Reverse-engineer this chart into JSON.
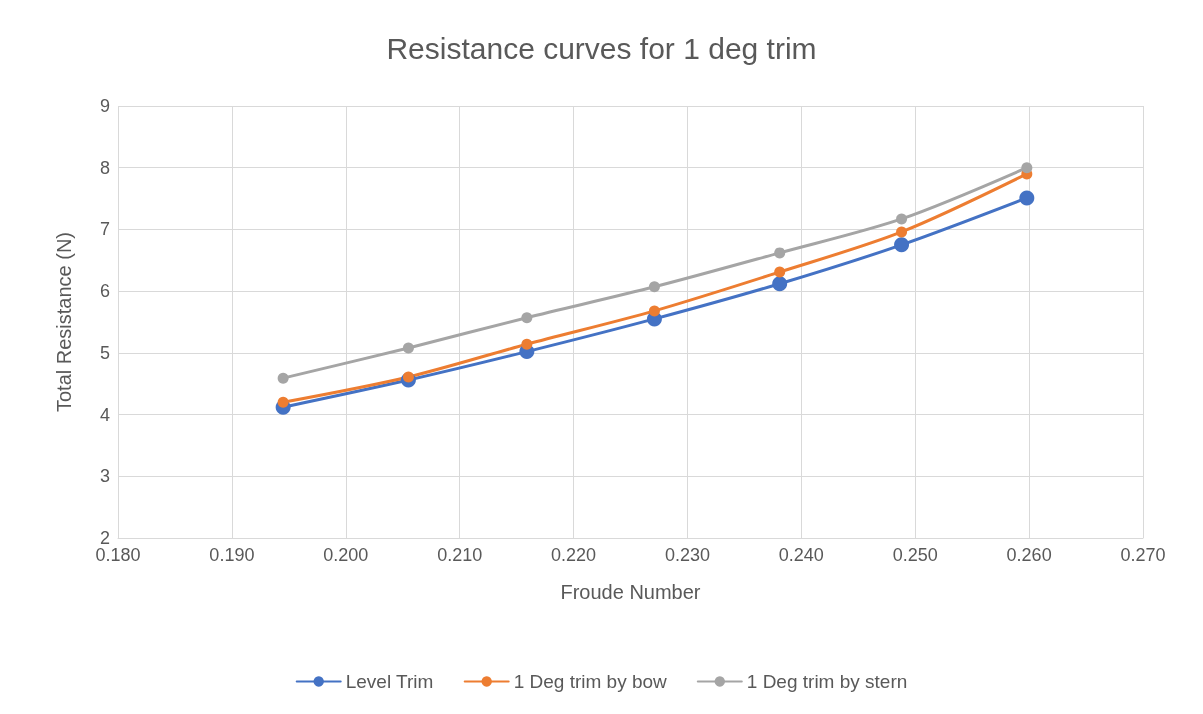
{
  "chart_data": {
    "type": "line",
    "title": "Resistance curves for 1 deg trim",
    "xlabel": "Froude Number",
    "ylabel": "Total Resistance (N)",
    "x": [
      0.1945,
      0.2055,
      0.2159,
      0.2271,
      0.2381,
      0.2488,
      0.2598
    ],
    "series": [
      {
        "name": "Level Trim",
        "color": "#4472c4",
        "values": [
          4.12,
          4.56,
          5.02,
          5.55,
          6.12,
          6.75,
          7.51
        ]
      },
      {
        "name": "1 Deg trim by bow",
        "color": "#ed7d31",
        "values": [
          4.2,
          4.61,
          5.14,
          5.68,
          6.31,
          6.96,
          7.9
        ]
      },
      {
        "name": "1 Deg trim by stern",
        "color": "#a5a5a5",
        "values": [
          4.59,
          5.08,
          5.57,
          6.07,
          6.62,
          7.17,
          8.0
        ]
      }
    ],
    "xlim": [
      0.18,
      0.27
    ],
    "xticks": [
      {
        "value": 0.18,
        "label": "0.180"
      },
      {
        "value": 0.19,
        "label": "0.190"
      },
      {
        "value": 0.2,
        "label": "0.200"
      },
      {
        "value": 0.21,
        "label": "0.210"
      },
      {
        "value": 0.22,
        "label": "0.220"
      },
      {
        "value": 0.23,
        "label": "0.230"
      },
      {
        "value": 0.24,
        "label": "0.240"
      },
      {
        "value": 0.25,
        "label": "0.250"
      },
      {
        "value": 0.26,
        "label": "0.260"
      },
      {
        "value": 0.27,
        "label": "0.270"
      }
    ],
    "ylim": [
      2,
      9
    ],
    "yticks": [
      2,
      3,
      4,
      5,
      6,
      7,
      8,
      9
    ],
    "grid": true,
    "legend": "bottom",
    "marker": "circle",
    "line_style": "solid"
  }
}
